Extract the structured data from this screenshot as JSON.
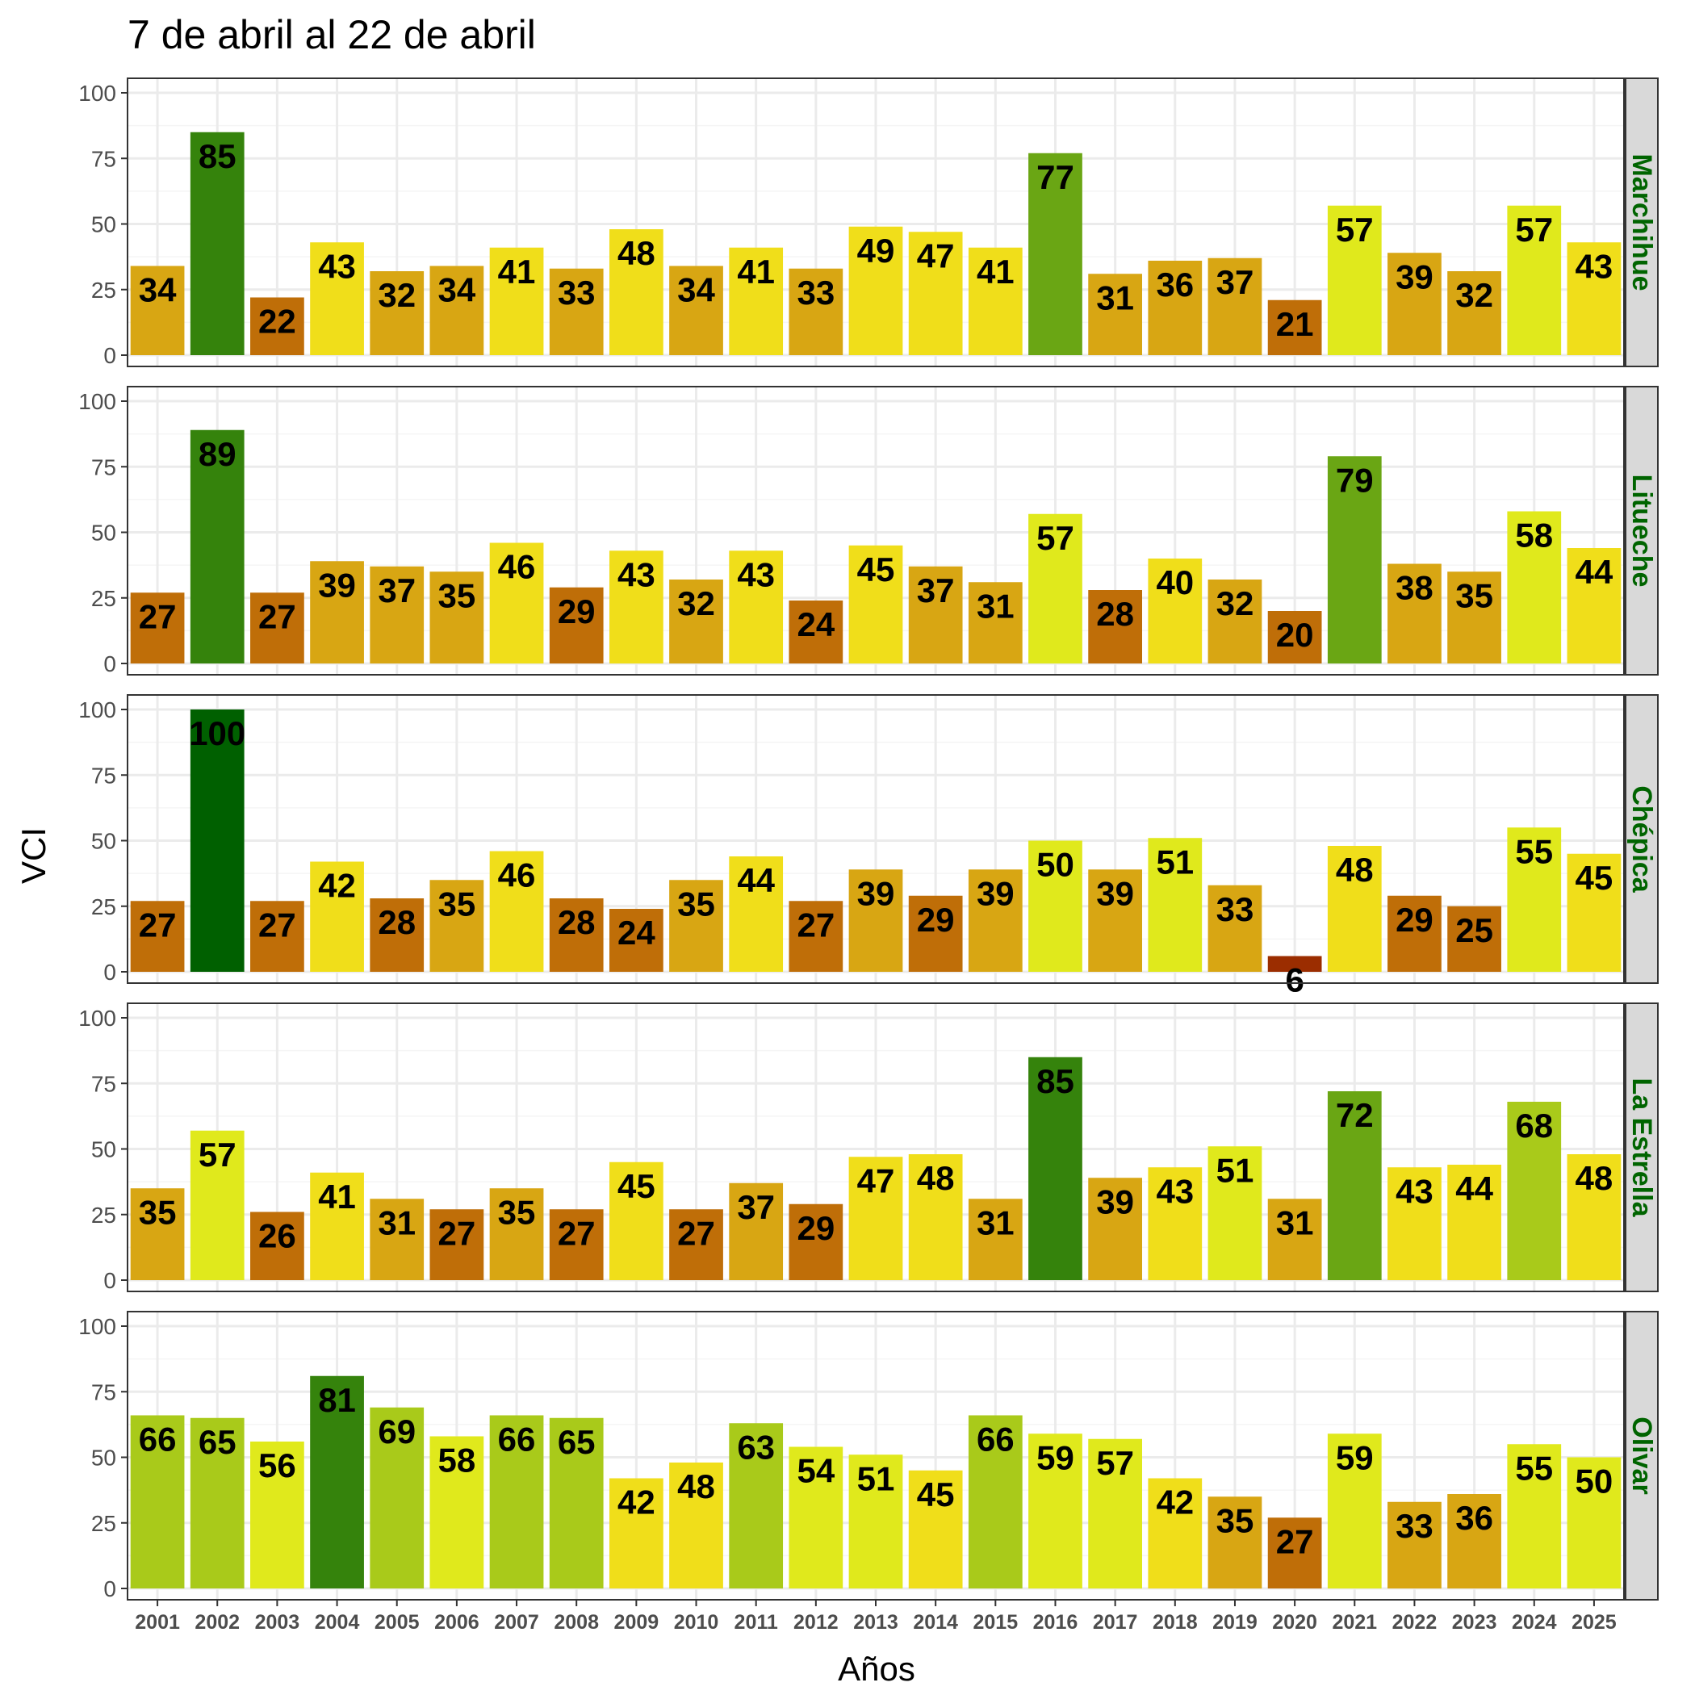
{
  "title": "7 de abril al 22 de abril",
  "colors": {
    "strip_text": "#006400",
    "strip_fill": "#d9d9d9",
    "grid_major": "#ebebeb",
    "grid_minor": "#f5f5f5",
    "panel_border": "#333333"
  },
  "chart_data": {
    "type": "bar",
    "xlabel": "Años",
    "ylabel": "VCI",
    "ylim": [
      0,
      100
    ],
    "yticks": [
      0,
      25,
      50,
      75,
      100
    ],
    "grid": true,
    "legend": "none",
    "categories": [
      "2001",
      "2002",
      "2003",
      "2004",
      "2005",
      "2006",
      "2007",
      "2008",
      "2009",
      "2010",
      "2011",
      "2012",
      "2013",
      "2014",
      "2015",
      "2016",
      "2017",
      "2018",
      "2019",
      "2020",
      "2021",
      "2022",
      "2023",
      "2024",
      "2025"
    ],
    "panels": [
      {
        "name": "Marchihue",
        "values": [
          34,
          85,
          22,
          43,
          32,
          34,
          41,
          33,
          48,
          34,
          41,
          33,
          49,
          47,
          41,
          77,
          31,
          36,
          37,
          21,
          57,
          39,
          32,
          57,
          43
        ]
      },
      {
        "name": "Litueche",
        "values": [
          27,
          89,
          27,
          39,
          37,
          35,
          46,
          29,
          43,
          32,
          43,
          24,
          45,
          37,
          31,
          57,
          28,
          40,
          32,
          20,
          79,
          38,
          35,
          58,
          44
        ]
      },
      {
        "name": "Chépica",
        "values": [
          27,
          100,
          27,
          42,
          28,
          35,
          46,
          28,
          24,
          35,
          44,
          27,
          39,
          29,
          39,
          50,
          39,
          51,
          33,
          6,
          48,
          29,
          25,
          55,
          45
        ]
      },
      {
        "name": "La Estrella",
        "values": [
          35,
          57,
          26,
          41,
          31,
          27,
          35,
          27,
          45,
          27,
          37,
          29,
          47,
          48,
          31,
          85,
          39,
          43,
          51,
          31,
          72,
          43,
          44,
          68,
          48
        ]
      },
      {
        "name": "Olivar",
        "values": [
          66,
          65,
          56,
          81,
          69,
          58,
          66,
          65,
          42,
          48,
          63,
          54,
          51,
          45,
          66,
          59,
          57,
          42,
          35,
          27,
          59,
          33,
          36,
          55,
          50
        ]
      }
    ],
    "color_scale": [
      {
        "min": 0,
        "max": 10,
        "color": "#9b2d00"
      },
      {
        "min": 10,
        "max": 20,
        "color": "#b03e00"
      },
      {
        "min": 20,
        "max": 30,
        "color": "#bf6e08"
      },
      {
        "min": 30,
        "max": 40,
        "color": "#d8a613"
      },
      {
        "min": 40,
        "max": 50,
        "color": "#f0de1a"
      },
      {
        "min": 50,
        "max": 60,
        "color": "#e0e91c"
      },
      {
        "min": 60,
        "max": 70,
        "color": "#a9ca1a"
      },
      {
        "min": 70,
        "max": 80,
        "color": "#6aa614"
      },
      {
        "min": 80,
        "max": 90,
        "color": "#35830c"
      },
      {
        "min": 90,
        "max": 101,
        "color": "#006000"
      }
    ]
  }
}
